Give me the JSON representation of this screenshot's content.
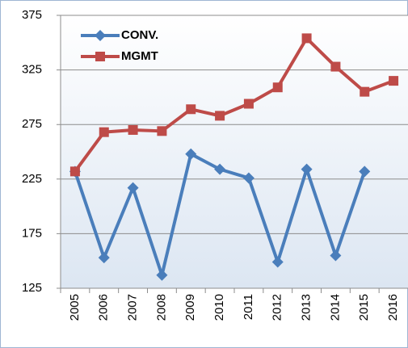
{
  "chart_data": {
    "type": "line",
    "categories": [
      "2005",
      "2006",
      "2007",
      "2008",
      "2009",
      "2010",
      "2011",
      "2012",
      "2013",
      "2014",
      "2015",
      "2016"
    ],
    "series": [
      {
        "name": "CONV.",
        "color": "#4a7ebb",
        "marker": "diamond",
        "values": [
          232,
          153,
          217,
          137,
          248,
          234,
          226,
          149,
          234,
          155,
          232,
          null
        ]
      },
      {
        "name": "MGMT",
        "color": "#be4b48",
        "marker": "square",
        "values": [
          232,
          268,
          270,
          269,
          289,
          283,
          294,
          309,
          354,
          328,
          305,
          315
        ]
      }
    ],
    "ylim": [
      125,
      375
    ],
    "yticks": [
      125,
      175,
      225,
      275,
      325,
      375
    ],
    "grid": true,
    "legend": "upper left"
  }
}
